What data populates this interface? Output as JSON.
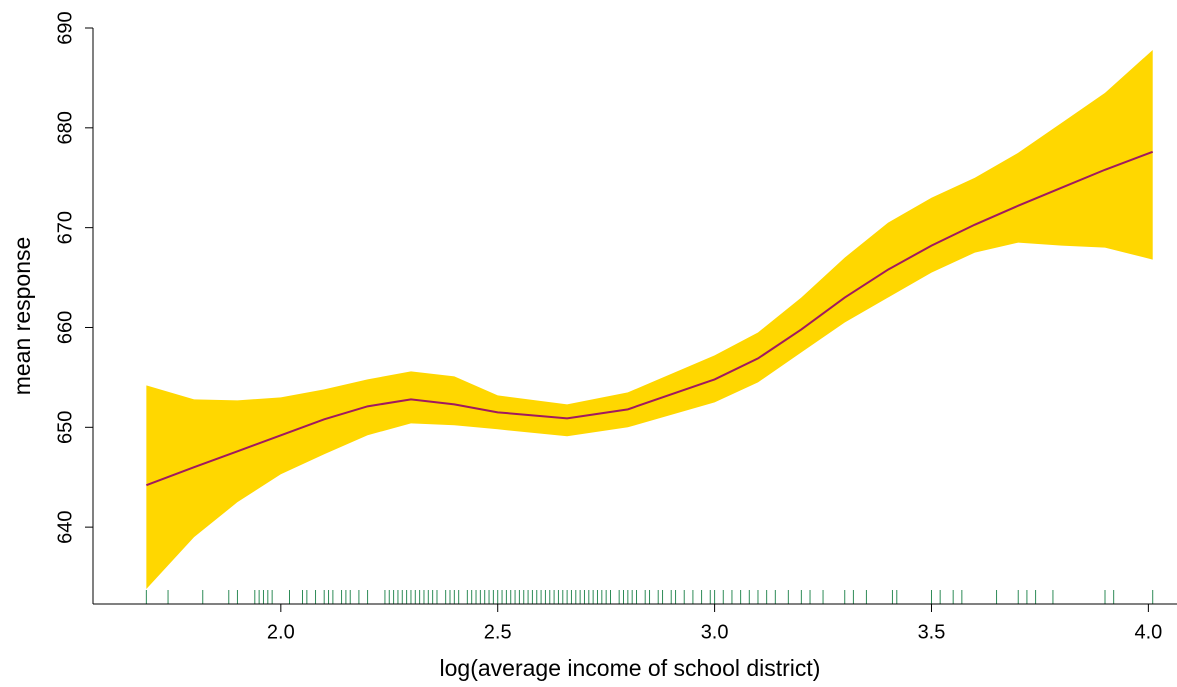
{
  "chart_data": {
    "type": "smooth",
    "x_label": "log(average income of school district)",
    "y_label": "mean response",
    "x": [
      1.69,
      1.8,
      1.9,
      2.0,
      2.1,
      2.2,
      2.3,
      2.4,
      2.5,
      2.66,
      2.8,
      3.0,
      3.1,
      3.2,
      3.3,
      3.4,
      3.5,
      3.6,
      3.7,
      3.8,
      3.9,
      4.01
    ],
    "values": [
      644.2,
      646,
      647.6,
      649.2,
      650.8,
      652.1,
      652.8,
      652.3,
      651.5,
      650.9,
      651.8,
      654.8,
      656.9,
      659.8,
      663,
      665.8,
      668.2,
      670.3,
      672.2,
      674,
      675.8,
      677.6
    ],
    "color": "#a0195f",
    "band": {
      "color": "#ffd700",
      "upper": [
        654.2,
        652.8,
        652.7,
        653,
        653.8,
        654.8,
        655.6,
        655.1,
        653.2,
        652.3,
        653.5,
        657.2,
        659.5,
        663,
        667,
        670.5,
        673,
        675,
        677.5,
        680.5,
        683.5,
        687.8
      ],
      "lower": [
        633.8,
        639,
        642.5,
        645.3,
        647.3,
        649.2,
        650.4,
        650.2,
        649.8,
        649.1,
        650,
        652.5,
        654.5,
        657.5,
        660.5,
        663,
        665.5,
        667.5,
        668.5,
        668.2,
        668,
        666.8
      ]
    },
    "rug": {
      "color": "#2e8b57",
      "x": [
        1.69,
        1.74,
        1.82,
        1.88,
        1.9,
        1.94,
        1.95,
        1.96,
        1.97,
        1.98,
        2.02,
        2.05,
        2.06,
        2.08,
        2.1,
        2.11,
        2.12,
        2.14,
        2.15,
        2.16,
        2.18,
        2.2,
        2.24,
        2.25,
        2.26,
        2.27,
        2.28,
        2.29,
        2.3,
        2.31,
        2.32,
        2.33,
        2.34,
        2.35,
        2.36,
        2.38,
        2.39,
        2.4,
        2.41,
        2.43,
        2.44,
        2.45,
        2.46,
        2.47,
        2.48,
        2.49,
        2.5,
        2.51,
        2.52,
        2.53,
        2.54,
        2.55,
        2.56,
        2.57,
        2.58,
        2.59,
        2.6,
        2.61,
        2.62,
        2.63,
        2.64,
        2.65,
        2.66,
        2.67,
        2.68,
        2.69,
        2.7,
        2.71,
        2.72,
        2.73,
        2.74,
        2.75,
        2.76,
        2.78,
        2.79,
        2.8,
        2.81,
        2.82,
        2.84,
        2.85,
        2.87,
        2.88,
        2.9,
        2.91,
        2.93,
        2.95,
        2.97,
        2.99,
        3.0,
        3.02,
        3.04,
        3.06,
        3.08,
        3.1,
        3.12,
        3.14,
        3.17,
        3.2,
        3.22,
        3.25,
        3.3,
        3.32,
        3.35,
        3.41,
        3.42,
        3.5,
        3.52,
        3.55,
        3.57,
        3.65,
        3.7,
        3.72,
        3.74,
        3.78,
        3.9,
        3.92,
        4.01
      ]
    },
    "xlim": [
      1.567,
      4.066
    ],
    "ylim": [
      632.3,
      690
    ],
    "xticks": [
      {
        "value": 2,
        "label": "2.0"
      },
      {
        "value": 2.5,
        "label": "2.5"
      },
      {
        "value": 3,
        "label": "3.0"
      },
      {
        "value": 3.5,
        "label": "3.5"
      },
      {
        "value": 4,
        "label": "4.0"
      }
    ],
    "yticks": [
      640,
      650,
      660,
      670,
      680,
      690
    ]
  }
}
